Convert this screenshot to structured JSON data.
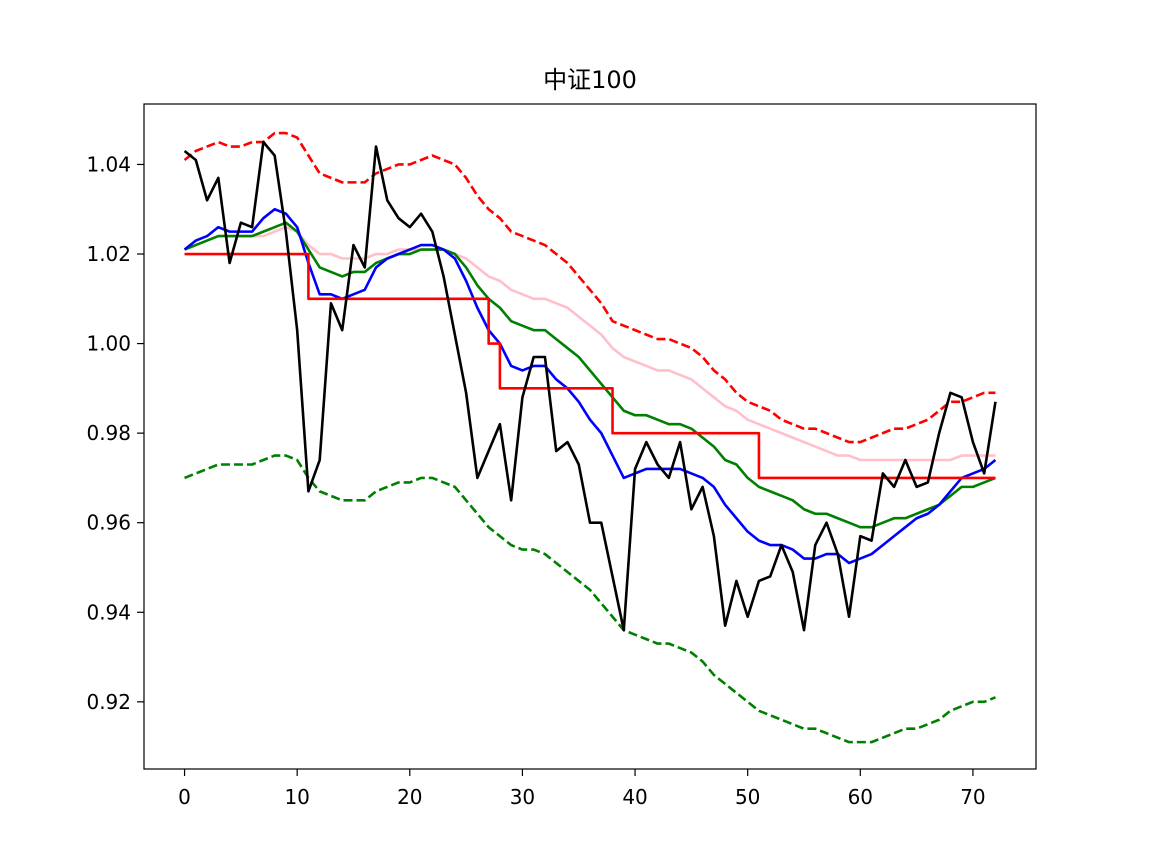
{
  "chart_data": {
    "type": "line",
    "title": "中证100",
    "xlabel": "",
    "ylabel": "",
    "xlim": [
      -3.6,
      75.6
    ],
    "ylim": [
      0.905,
      1.0535
    ],
    "x_ticks": [
      0,
      10,
      20,
      30,
      40,
      50,
      60,
      70
    ],
    "y_ticks": [
      0.92,
      0.94,
      0.96,
      0.98,
      1.0,
      1.02,
      1.04
    ],
    "y_tick_labels": [
      "0.92",
      "0.94",
      "0.96",
      "0.98",
      "1.00",
      "1.02",
      "1.04"
    ],
    "grid": false,
    "legend": "none",
    "series": [
      {
        "color": "#ff0000",
        "style": "dashed",
        "values": [
          1.041,
          1.043,
          1.044,
          1.045,
          1.044,
          1.044,
          1.045,
          1.045,
          1.047,
          1.047,
          1.046,
          1.042,
          1.038,
          1.037,
          1.036,
          1.036,
          1.036,
          1.038,
          1.039,
          1.04,
          1.04,
          1.041,
          1.042,
          1.041,
          1.04,
          1.037,
          1.033,
          1.03,
          1.028,
          1.025,
          1.024,
          1.023,
          1.022,
          1.02,
          1.018,
          1.015,
          1.012,
          1.009,
          1.005,
          1.004,
          1.003,
          1.002,
          1.001,
          1.001,
          1.0,
          0.999,
          0.997,
          0.994,
          0.992,
          0.989,
          0.987,
          0.986,
          0.985,
          0.983,
          0.982,
          0.981,
          0.981,
          0.98,
          0.979,
          0.978,
          0.978,
          0.979,
          0.98,
          0.981,
          0.981,
          0.982,
          0.983,
          0.985,
          0.987,
          0.987,
          0.988,
          0.989,
          0.989
        ]
      },
      {
        "color": "#008000",
        "style": "dashed",
        "values": [
          0.97,
          0.971,
          0.972,
          0.973,
          0.973,
          0.973,
          0.973,
          0.974,
          0.975,
          0.975,
          0.974,
          0.97,
          0.967,
          0.966,
          0.965,
          0.965,
          0.965,
          0.967,
          0.968,
          0.969,
          0.969,
          0.97,
          0.97,
          0.969,
          0.968,
          0.965,
          0.962,
          0.959,
          0.957,
          0.955,
          0.954,
          0.954,
          0.953,
          0.951,
          0.949,
          0.947,
          0.945,
          0.942,
          0.939,
          0.936,
          0.935,
          0.934,
          0.933,
          0.933,
          0.932,
          0.931,
          0.929,
          0.926,
          0.924,
          0.922,
          0.92,
          0.918,
          0.917,
          0.916,
          0.915,
          0.914,
          0.914,
          0.913,
          0.912,
          0.911,
          0.911,
          0.911,
          0.912,
          0.913,
          0.914,
          0.914,
          0.915,
          0.916,
          0.918,
          0.919,
          0.92,
          0.92,
          0.921
        ]
      },
      {
        "color": "#ffc0cb",
        "style": "solid",
        "values": [
          1.021,
          1.022,
          1.023,
          1.024,
          1.024,
          1.024,
          1.024,
          1.024,
          1.025,
          1.026,
          1.025,
          1.022,
          1.02,
          1.02,
          1.019,
          1.019,
          1.019,
          1.02,
          1.02,
          1.021,
          1.021,
          1.021,
          1.021,
          1.021,
          1.02,
          1.019,
          1.017,
          1.015,
          1.014,
          1.012,
          1.011,
          1.01,
          1.01,
          1.009,
          1.008,
          1.006,
          1.004,
          1.002,
          0.999,
          0.997,
          0.996,
          0.995,
          0.994,
          0.994,
          0.993,
          0.992,
          0.99,
          0.988,
          0.986,
          0.985,
          0.983,
          0.982,
          0.981,
          0.98,
          0.979,
          0.978,
          0.977,
          0.976,
          0.975,
          0.975,
          0.974,
          0.974,
          0.974,
          0.974,
          0.974,
          0.974,
          0.974,
          0.974,
          0.974,
          0.975,
          0.975,
          0.975,
          0.975
        ]
      },
      {
        "color": "#008000",
        "style": "solid",
        "values": [
          1.021,
          1.022,
          1.023,
          1.024,
          1.024,
          1.024,
          1.024,
          1.025,
          1.026,
          1.027,
          1.025,
          1.021,
          1.017,
          1.016,
          1.015,
          1.016,
          1.016,
          1.018,
          1.019,
          1.02,
          1.02,
          1.021,
          1.021,
          1.021,
          1.02,
          1.017,
          1.013,
          1.01,
          1.008,
          1.005,
          1.004,
          1.003,
          1.003,
          1.001,
          0.999,
          0.997,
          0.994,
          0.991,
          0.988,
          0.985,
          0.984,
          0.984,
          0.983,
          0.982,
          0.982,
          0.981,
          0.979,
          0.977,
          0.974,
          0.973,
          0.97,
          0.968,
          0.967,
          0.966,
          0.965,
          0.963,
          0.962,
          0.962,
          0.961,
          0.96,
          0.959,
          0.959,
          0.96,
          0.961,
          0.961,
          0.962,
          0.963,
          0.964,
          0.966,
          0.968,
          0.968,
          0.969,
          0.97
        ]
      },
      {
        "color": "#0000ff",
        "style": "solid",
        "values": [
          1.021,
          1.023,
          1.024,
          1.026,
          1.025,
          1.025,
          1.025,
          1.028,
          1.03,
          1.029,
          1.026,
          1.018,
          1.011,
          1.011,
          1.01,
          1.011,
          1.012,
          1.017,
          1.019,
          1.02,
          1.021,
          1.022,
          1.022,
          1.021,
          1.019,
          1.014,
          1.008,
          1.003,
          1.0,
          0.995,
          0.994,
          0.995,
          0.995,
          0.992,
          0.99,
          0.987,
          0.983,
          0.98,
          0.975,
          0.97,
          0.971,
          0.972,
          0.972,
          0.972,
          0.972,
          0.971,
          0.97,
          0.968,
          0.964,
          0.961,
          0.958,
          0.956,
          0.955,
          0.955,
          0.954,
          0.952,
          0.952,
          0.953,
          0.953,
          0.951,
          0.952,
          0.953,
          0.955,
          0.957,
          0.959,
          0.961,
          0.962,
          0.964,
          0.967,
          0.97,
          0.971,
          0.972,
          0.974
        ]
      },
      {
        "color": "#ff0000",
        "style": "step",
        "values": [
          1.02,
          1.02,
          1.02,
          1.02,
          1.02,
          1.02,
          1.02,
          1.02,
          1.02,
          1.02,
          1.02,
          1.01,
          1.01,
          1.01,
          1.01,
          1.01,
          1.01,
          1.01,
          1.01,
          1.01,
          1.01,
          1.01,
          1.01,
          1.01,
          1.01,
          1.01,
          1.01,
          1.0,
          0.99,
          0.99,
          0.99,
          0.99,
          0.99,
          0.99,
          0.99,
          0.99,
          0.99,
          0.99,
          0.98,
          0.98,
          0.98,
          0.98,
          0.98,
          0.98,
          0.98,
          0.98,
          0.98,
          0.98,
          0.98,
          0.98,
          0.98,
          0.97,
          0.97,
          0.97,
          0.97,
          0.97,
          0.97,
          0.97,
          0.97,
          0.97,
          0.97,
          0.97,
          0.97,
          0.97,
          0.97,
          0.97,
          0.97,
          0.97,
          0.97,
          0.97,
          0.97,
          0.97,
          0.97
        ]
      },
      {
        "color": "#000000",
        "style": "solid",
        "values": [
          1.043,
          1.041,
          1.032,
          1.037,
          1.018,
          1.027,
          1.026,
          1.045,
          1.042,
          1.025,
          1.003,
          0.967,
          0.974,
          1.009,
          1.003,
          1.022,
          1.017,
          1.044,
          1.032,
          1.028,
          1.026,
          1.029,
          1.025,
          1.015,
          1.002,
          0.989,
          0.97,
          0.976,
          0.982,
          0.965,
          0.988,
          0.997,
          0.997,
          0.976,
          0.978,
          0.973,
          0.96,
          0.96,
          0.948,
          0.936,
          0.972,
          0.978,
          0.973,
          0.97,
          0.978,
          0.963,
          0.968,
          0.957,
          0.937,
          0.947,
          0.939,
          0.947,
          0.948,
          0.955,
          0.949,
          0.936,
          0.955,
          0.96,
          0.953,
          0.939,
          0.957,
          0.956,
          0.971,
          0.968,
          0.974,
          0.968,
          0.969,
          0.98,
          0.989,
          0.988,
          0.978,
          0.971,
          0.987
        ]
      }
    ]
  }
}
